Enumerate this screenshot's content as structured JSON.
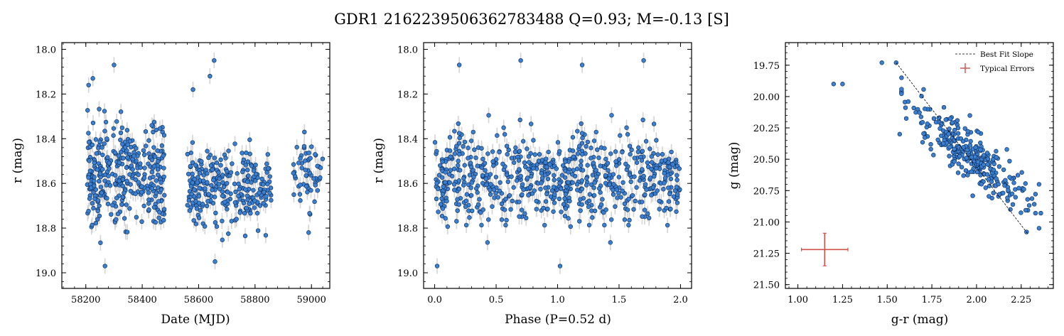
{
  "figure": {
    "title": "GDR1 2162239506362783488  Q=0.93; M=-0.13 [S]",
    "colors": {
      "point": "#3a7fd0",
      "point_edge": "#0b2a55",
      "errbar": "#d4d4d4",
      "typical_error": "#d0504a",
      "fit_line": "#000000"
    }
  },
  "chart_data": [
    {
      "type": "scatter",
      "xlabel": "Date (MJD)",
      "ylabel": "r (mag)",
      "xlim": [
        58115,
        59065
      ],
      "ylim": [
        19.07,
        17.97
      ],
      "xticks": [
        58200,
        58400,
        58600,
        58800,
        59000
      ],
      "yticks": [
        18.0,
        18.2,
        18.4,
        18.6,
        18.8,
        19.0
      ],
      "xtick_labels": [
        "58200",
        "58400",
        "58600",
        "58800",
        "59000"
      ],
      "ytick_labels": [
        "18.0",
        "18.2",
        "18.4",
        "18.6",
        "18.8",
        "19.0"
      ],
      "y_inverted": true,
      "typical_yerr": 0.035,
      "seasons": [
        {
          "x_range": [
            58205,
            58480
          ],
          "center": 18.56,
          "spread": 0.19,
          "n": 340,
          "extremes": [
            [
              58300,
              18.07
            ],
            [
              58268,
              18.97
            ],
            [
              58210,
              18.16
            ],
            [
              58225,
              18.13
            ]
          ]
        },
        {
          "x_range": [
            58560,
            58860
          ],
          "center": 18.62,
          "spread": 0.15,
          "n": 260,
          "extremes": [
            [
              58655,
              18.05
            ],
            [
              58658,
              18.95
            ],
            [
              58580,
              18.18
            ],
            [
              58640,
              18.12
            ]
          ]
        },
        {
          "x_range": [
            58935,
            59040
          ],
          "center": 18.55,
          "spread": 0.13,
          "n": 55,
          "extremes": [
            [
              58975,
              18.37
            ],
            [
              58990,
              18.82
            ]
          ]
        }
      ]
    },
    {
      "type": "scatter",
      "xlabel": "Phase (P=0.52 d)",
      "ylabel": "r (mag)",
      "xlim": [
        -0.09,
        2.09
      ],
      "ylim": [
        19.07,
        17.97
      ],
      "xticks": [
        0.0,
        0.5,
        1.0,
        1.5,
        2.0
      ],
      "yticks": [
        18.0,
        18.2,
        18.4,
        18.6,
        18.8,
        19.0
      ],
      "xtick_labels": [
        "0.0",
        "0.5",
        "1.0",
        "1.5",
        "2.0"
      ],
      "ytick_labels": [
        "18.0",
        "18.2",
        "18.4",
        "18.6",
        "18.8",
        "19.0"
      ],
      "y_inverted": true,
      "period_days": 0.52,
      "center": 18.58,
      "spread": 0.17,
      "n_per_cycle": 330,
      "typical_yerr": 0.035,
      "extremes": [
        [
          0.7,
          18.05
        ],
        [
          0.2,
          18.07
        ],
        [
          0.02,
          18.97
        ],
        [
          1.7,
          18.05
        ],
        [
          1.2,
          18.07
        ],
        [
          1.02,
          18.97
        ]
      ]
    },
    {
      "type": "scatter",
      "xlabel": "g-r (mag)",
      "ylabel": "g (mag)",
      "xlim": [
        0.93,
        2.43
      ],
      "ylim": [
        21.53,
        19.57
      ],
      "xticks": [
        1.0,
        1.25,
        1.5,
        1.75,
        2.0,
        2.25
      ],
      "yticks": [
        19.75,
        20.0,
        20.25,
        20.5,
        20.75,
        21.0,
        21.25,
        21.5
      ],
      "xtick_labels": [
        "1.00",
        "1.25",
        "1.50",
        "1.75",
        "2.00",
        "2.25"
      ],
      "ytick_labels": [
        "19.75",
        "20.00",
        "20.25",
        "20.50",
        "20.75",
        "21.00",
        "21.25",
        "21.50"
      ],
      "y_inverted": true,
      "cluster": {
        "center": [
          1.97,
          20.47
        ],
        "spread": [
          0.15,
          0.2
        ],
        "slope": 1.45,
        "n": 300
      },
      "outliers": [
        [
          1.2,
          19.9
        ],
        [
          1.25,
          19.9
        ],
        [
          1.47,
          19.73
        ],
        [
          1.55,
          19.73
        ],
        [
          1.57,
          20.3
        ],
        [
          2.35,
          20.7
        ],
        [
          2.33,
          20.93
        ],
        [
          2.36,
          20.93
        ],
        [
          2.35,
          21.05
        ],
        [
          2.28,
          21.08
        ]
      ],
      "best_fit_line": {
        "x": [
          1.55,
          2.29
        ],
        "y": [
          19.73,
          21.1
        ]
      },
      "typical_error": {
        "x": 1.15,
        "y": 21.22,
        "xerr": 0.13,
        "yerr": 0.13
      },
      "legend": {
        "position": "top-right",
        "entries": [
          "Best Fit Slope",
          "Typical Errors"
        ]
      }
    }
  ]
}
